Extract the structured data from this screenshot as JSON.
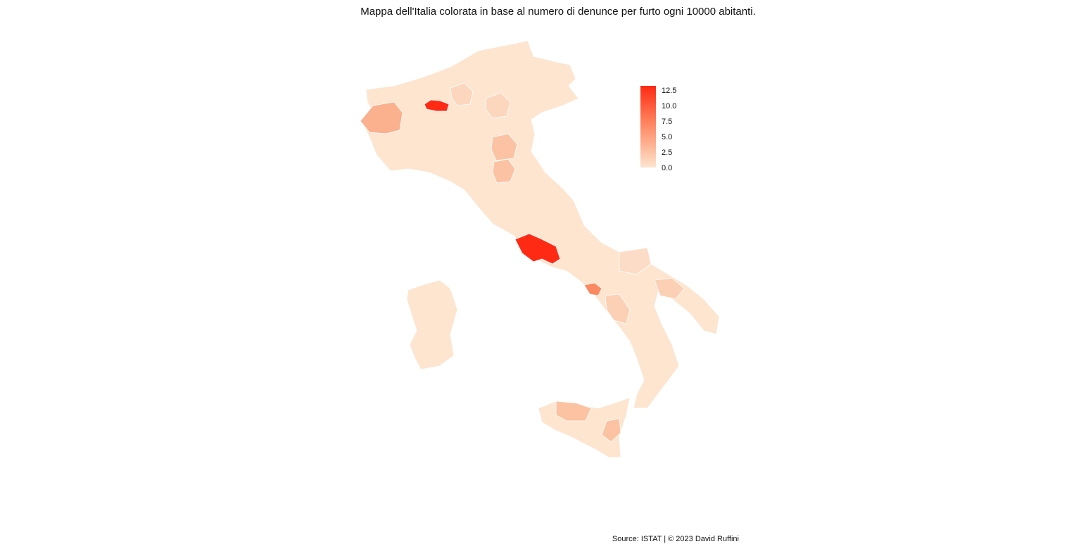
{
  "title": "Mappa dell'Italia colorata in base al numero di denunce per furto ogni 10000 abitanti.",
  "caption": "Source: ISTAT | © 2023 David Ruffini",
  "legend": {
    "ticks": [
      "12.5",
      "10.0",
      "7.5",
      "5.0",
      "2.5",
      "0.0"
    ],
    "range": [
      0,
      13
    ],
    "low_color": "#fde5d0",
    "high_color": "#ff2a14"
  },
  "colors": {
    "base": "#fde5d0",
    "light": "#fcd6bd",
    "medium": "#fbbf9e",
    "mediumdark": "#fcaa85",
    "orange": "#fb8a63",
    "red": "#ff2a14",
    "border": "#ffffff"
  }
}
